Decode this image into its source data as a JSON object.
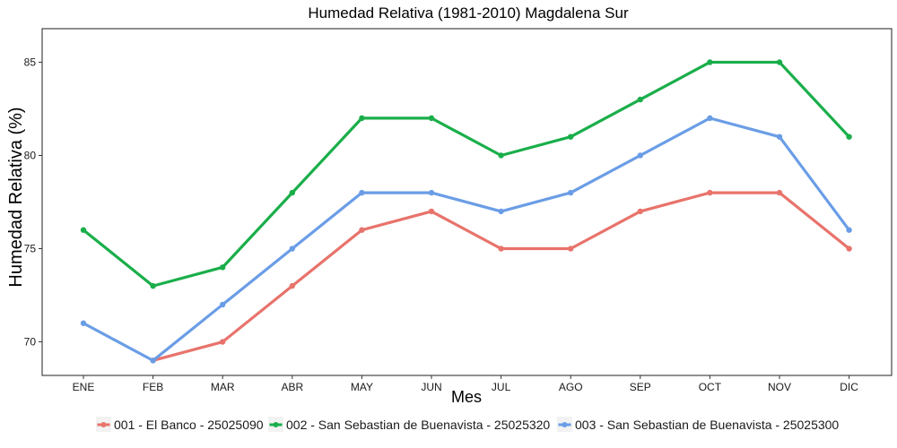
{
  "chart_data": {
    "type": "line",
    "title": "Humedad Relativa (1981-2010)  Magdalena Sur",
    "xlabel": "Mes",
    "ylabel": "Humedad Relativa  (%)",
    "categories": [
      "ENE",
      "FEB",
      "MAR",
      "ABR",
      "MAY",
      "JUN",
      "JUL",
      "AGO",
      "SEP",
      "OCT",
      "NOV",
      "DIC"
    ],
    "ylim": [
      68.2,
      86.8
    ],
    "yticks": [
      70,
      75,
      80,
      85
    ],
    "grid": false,
    "legend_position": "bottom",
    "series": [
      {
        "name": "001 - El Banco - 25025090",
        "color": "#E8736B",
        "values": [
          null,
          69,
          70,
          73,
          76,
          77,
          75,
          75,
          77,
          78,
          78,
          75
        ]
      },
      {
        "name": "002 - San Sebastian de Buenavista - 25025320",
        "color": "#1AAE4A",
        "values": [
          76,
          73,
          74,
          78,
          82,
          82,
          80,
          81,
          83,
          85,
          85,
          81
        ]
      },
      {
        "name": "003 - San Sebastian de Buenavista - 25025300",
        "color": "#6A9DE6",
        "values": [
          71,
          69,
          72,
          75,
          78,
          78,
          77,
          78,
          80,
          82,
          81,
          76
        ]
      }
    ]
  }
}
